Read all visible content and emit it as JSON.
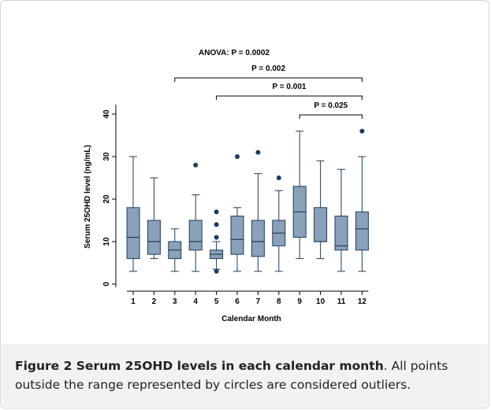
{
  "chart_data": {
    "type": "box",
    "annotation": "ANOVA: P = 0.0002",
    "xlabel": "Calendar Month",
    "ylabel": "Serum 25OHD level (ng/mL)",
    "ylim": [
      0,
      40
    ],
    "yticks": [
      0,
      10,
      20,
      30,
      40
    ],
    "categories": [
      "1",
      "2",
      "3",
      "4",
      "5",
      "6",
      "7",
      "8",
      "9",
      "10",
      "11",
      "12"
    ],
    "boxes": [
      {
        "min": 3,
        "q1": 6,
        "median": 11,
        "q3": 18,
        "max": 30,
        "outliers": []
      },
      {
        "min": 6,
        "q1": 7,
        "median": 10,
        "q3": 15,
        "max": 25,
        "outliers": []
      },
      {
        "min": 3,
        "q1": 6,
        "median": 8,
        "q3": 10,
        "max": 13,
        "outliers": []
      },
      {
        "min": 3,
        "q1": 8,
        "median": 10,
        "q3": 15,
        "max": 21,
        "outliers": [
          28
        ]
      },
      {
        "min": 3.5,
        "q1": 6,
        "median": 7,
        "q3": 8,
        "max": 10,
        "outliers": [
          3,
          11,
          14,
          17
        ]
      },
      {
        "min": 3,
        "q1": 7,
        "median": 10.5,
        "q3": 16,
        "max": 18,
        "outliers": [
          30
        ]
      },
      {
        "min": 3,
        "q1": 6.5,
        "median": 10,
        "q3": 15,
        "max": 26,
        "outliers": [
          31
        ]
      },
      {
        "min": 3,
        "q1": 9,
        "median": 12,
        "q3": 15,
        "max": 22,
        "outliers": [
          25
        ]
      },
      {
        "min": 6,
        "q1": 11,
        "median": 17,
        "q3": 23,
        "max": 36,
        "outliers": []
      },
      {
        "min": 6,
        "q1": 10,
        "median": 10,
        "q3": 18,
        "max": 29,
        "outliers": []
      },
      {
        "min": 3,
        "q1": 8,
        "median": 9,
        "q3": 16,
        "max": 27,
        "outliers": []
      },
      {
        "min": 3,
        "q1": 8,
        "median": 13,
        "q3": 17,
        "max": 30,
        "outliers": [
          36
        ]
      }
    ],
    "comparisons": [
      {
        "from": "3",
        "to": "12",
        "label": "P = 0.002"
      },
      {
        "from": "5",
        "to": "12",
        "label": "P = 0.001"
      },
      {
        "from": "9",
        "to": "12",
        "label": "P = 0.025"
      }
    ],
    "colors": {
      "box_fill": "#8aa1b9",
      "box_stroke": "#1f3c57",
      "outlier": "#1f3c57"
    }
  },
  "caption": {
    "label": "Figure 2",
    "title": " Serum 25OHD levels in each calendar month",
    "text": ". All points outside the range represented by circles are considered outliers."
  }
}
